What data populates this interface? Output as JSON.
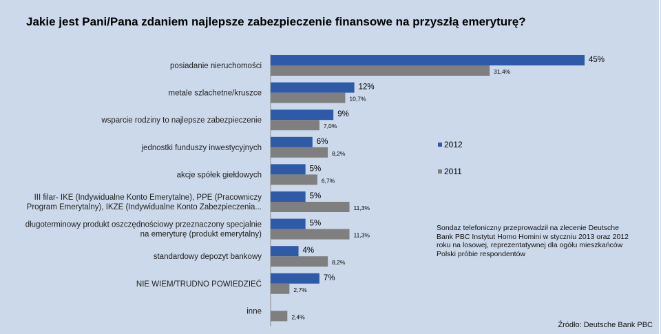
{
  "title": "Jakie jest Pani/Pana zdaniem najlepsze zabezpieczenie finansowe na przyszłą emeryturę?",
  "legend": {
    "series_2012": "2012",
    "series_2011": "2011",
    "color_2012": "#2e5aa8",
    "color_2011": "#7f7f7f"
  },
  "note": "Sondaz telefoniczny przeprowadził na zlecenie Deutsche Bank PBC Instytut Homo Homini w styczniu 2013 oraz 2012 roku na losowej, reprezentatywnej dla ogółu mieszkańców Polski próbie respondentów",
  "source": "Źródło: Deutsche Bank PBC",
  "chart_data": {
    "type": "bar",
    "orientation": "horizontal",
    "title": "Jakie jest Pani/Pana zdaniem najlepsze zabezpieczenie finansowe na przyszłą emeryturę?",
    "categories": [
      [
        "posiadanie nieruchomości"
      ],
      [
        "metale szlachetne/kruszce"
      ],
      [
        "wsparcie rodziny to najlepsze zabezpieczenie"
      ],
      [
        "jednostki funduszy inwestycyjnych"
      ],
      [
        "akcje spółek giełdowych"
      ],
      [
        "III filar- IKE (Indywidualne Konto Emerytalne), PPE (Pracowniczy",
        "Program Emerytalny), IKZE (Indywidualne Konto Zabezpieczenia..."
      ],
      [
        "długoterminowy produkt oszczędnościowy przeznaczony specjalnie",
        "na emeryturę (produkt emerytalny)"
      ],
      [
        "standardowy depozyt bankowy"
      ],
      [
        "NIE WIEM/TRUDNO POWIEDZIEĆ"
      ],
      [
        "inne"
      ]
    ],
    "series": [
      {
        "name": "2012",
        "values": [
          45,
          12,
          9,
          6,
          5,
          5,
          5,
          4,
          7,
          null
        ],
        "labels": [
          "45%",
          "12%",
          "9%",
          "6%",
          "5%",
          "5%",
          "5%",
          "4%",
          "7%",
          ""
        ]
      },
      {
        "name": "2011",
        "values": [
          31.4,
          10.7,
          7.0,
          8.2,
          6.7,
          11.3,
          11.3,
          8.2,
          2.7,
          2.4
        ],
        "labels": [
          "31,4%",
          "10,7%",
          "7,0%",
          "8,2%",
          "6,7%",
          "11,3%",
          "11,3%",
          "8,2%",
          "2,7%",
          "2,4%"
        ]
      }
    ],
    "xlim": [
      0,
      50
    ],
    "grid": false,
    "legend_position": "right"
  }
}
